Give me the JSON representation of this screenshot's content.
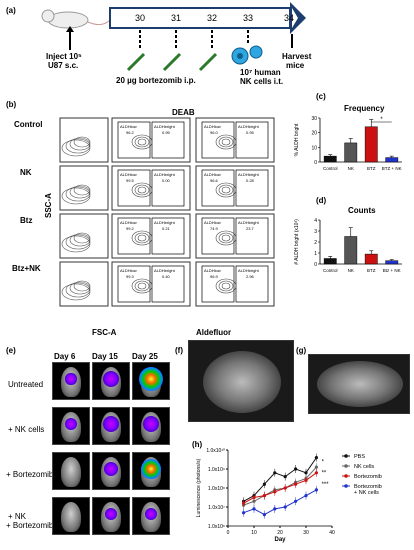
{
  "panels": {
    "a": "(a)",
    "b": "(b)",
    "c": "(c)",
    "d": "(d)",
    "e": "(e)",
    "f": "(f)",
    "g": "(g)",
    "h": "(h)"
  },
  "timeline": {
    "days": [
      "30",
      "31",
      "32",
      "33",
      "34"
    ],
    "inject": "Inject 10⁶ U87 s.c.",
    "inject_l1": "Inject 10⁵",
    "inject_l2": "U87 s.c.",
    "btz": "20 µg bortezomib i.p.",
    "nk_l1": "10⁷ human",
    "nk_l2": "NK cells i.t.",
    "harvest_l1": "Harvest",
    "harvest_l2": "mice"
  },
  "flow": {
    "title": "DEAB",
    "rows": [
      "Control",
      "NK",
      "Btz",
      "Btz+NK"
    ],
    "xlabel": "FSC-A",
    "ylabel": "SSC-A",
    "xlabel2": "Aldefluor",
    "gates": [
      [
        "96.2",
        "0.95",
        "96.0",
        "0.95"
      ],
      [
        "99.5",
        "0.00",
        "96.6",
        "0.28"
      ],
      [
        "99.2",
        "0.21",
        "74.9",
        "23.7"
      ],
      [
        "99.3",
        "0.40",
        "96.9",
        "2.96"
      ]
    ],
    "gate_lo": "ALDHlow",
    "gate_hi": "ALDHbright"
  },
  "chart_data": [
    {
      "type": "bar",
      "title": "Frequency",
      "ylabel": "% ALDH bright",
      "categories": [
        "Control",
        "NK",
        "BTZ",
        "BTZ + NK"
      ],
      "values": [
        4,
        13,
        24,
        3
      ],
      "errors": [
        1,
        3,
        5,
        1
      ],
      "ylim": [
        0,
        30
      ],
      "yticks": [
        "0",
        "10",
        "20",
        "30"
      ],
      "colors": [
        "#111111",
        "#555555",
        "#cc1111",
        "#2233cc"
      ],
      "annotation": "*"
    },
    {
      "type": "bar",
      "title": "Counts",
      "ylabel": "# ALDH bright (x10³)",
      "categories": [
        "Control",
        "NK",
        "BTZ",
        "Btz + NK"
      ],
      "values": [
        0.5,
        2.5,
        0.9,
        0.3
      ],
      "errors": [
        0.2,
        0.8,
        0.3,
        0.1
      ],
      "ylim": [
        0,
        4
      ],
      "yticks": [
        "0",
        "1",
        "2",
        "3",
        "4"
      ],
      "colors": [
        "#111111",
        "#555555",
        "#cc1111",
        "#2233cc"
      ]
    },
    {
      "type": "line",
      "xlabel": "Day",
      "ylabel": "Luminescence (photons/s)",
      "xlim": [
        0,
        40
      ],
      "xticks": [
        "0",
        "10",
        "20",
        "30",
        "40"
      ],
      "yticks": [
        "1.0x10⁶",
        "1.0x10⁷",
        "1.0x10⁸",
        "1.0x10⁹",
        "1.0x10¹⁰"
      ],
      "series": [
        {
          "name": "PBS",
          "color": "#111111",
          "x": [
            6,
            10,
            14,
            18,
            22,
            26,
            30,
            34
          ],
          "y": [
            7.3,
            7.6,
            8.2,
            8.8,
            8.6,
            9.0,
            8.8,
            9.6
          ]
        },
        {
          "name": "NK cells",
          "color": "#666666",
          "x": [
            6,
            10,
            14,
            18,
            22,
            26,
            30,
            34
          ],
          "y": [
            7.1,
            7.3,
            7.6,
            7.9,
            8.0,
            8.3,
            8.5,
            9.1
          ]
        },
        {
          "name": "Bortezomib",
          "color": "#cc1111",
          "x": [
            6,
            10,
            14,
            18,
            22,
            26,
            30,
            34
          ],
          "y": [
            7.2,
            7.5,
            7.6,
            7.8,
            8.0,
            8.2,
            8.4,
            8.8
          ]
        },
        {
          "name": "Bortezomib + NK cells",
          "color": "#2233cc",
          "x": [
            6,
            10,
            14,
            18,
            22,
            26,
            30,
            34
          ],
          "y": [
            6.7,
            6.9,
            6.6,
            6.9,
            7.0,
            7.3,
            7.6,
            7.9
          ]
        }
      ],
      "stars": [
        "*",
        "**",
        "***"
      ]
    }
  ],
  "imaging": {
    "days": [
      "Day 6",
      "Day 15",
      "Day 25"
    ],
    "rows": [
      "Untreated",
      "+ NK cells",
      "+ Bortezomib",
      "+ NK\n+ Bortezomib"
    ],
    "row3a": "+ NK",
    "row3b": "+ Bortezomib"
  }
}
